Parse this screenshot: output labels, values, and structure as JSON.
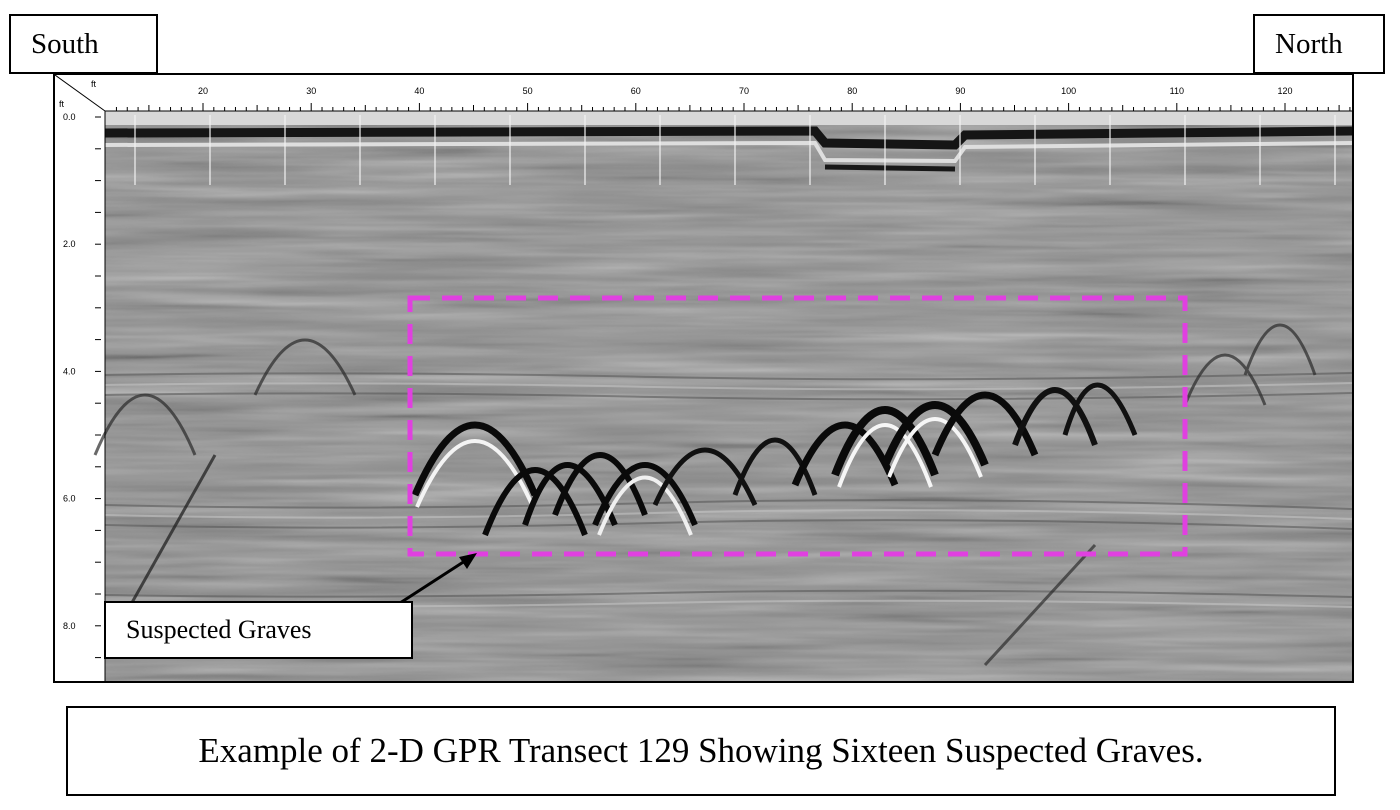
{
  "labels": {
    "left_direction": "South",
    "right_direction": "North",
    "callout": "Suspected Graves",
    "caption": "Example of 2-D GPR Transect 129 Showing Sixteen Suspected Graves."
  },
  "radargram": {
    "horizontal_unit": "ft",
    "vertical_unit": "ft",
    "horizontal_ticks": [
      "20",
      "30",
      "40",
      "50",
      "60",
      "70",
      "80",
      "90",
      "100",
      "110",
      "120"
    ],
    "depth_ticks": [
      "0.0",
      "2.0",
      "4.0",
      "6.0",
      "8.0"
    ],
    "highlight_color": "#e040e0",
    "background_color": "#8c8c8c"
  }
}
